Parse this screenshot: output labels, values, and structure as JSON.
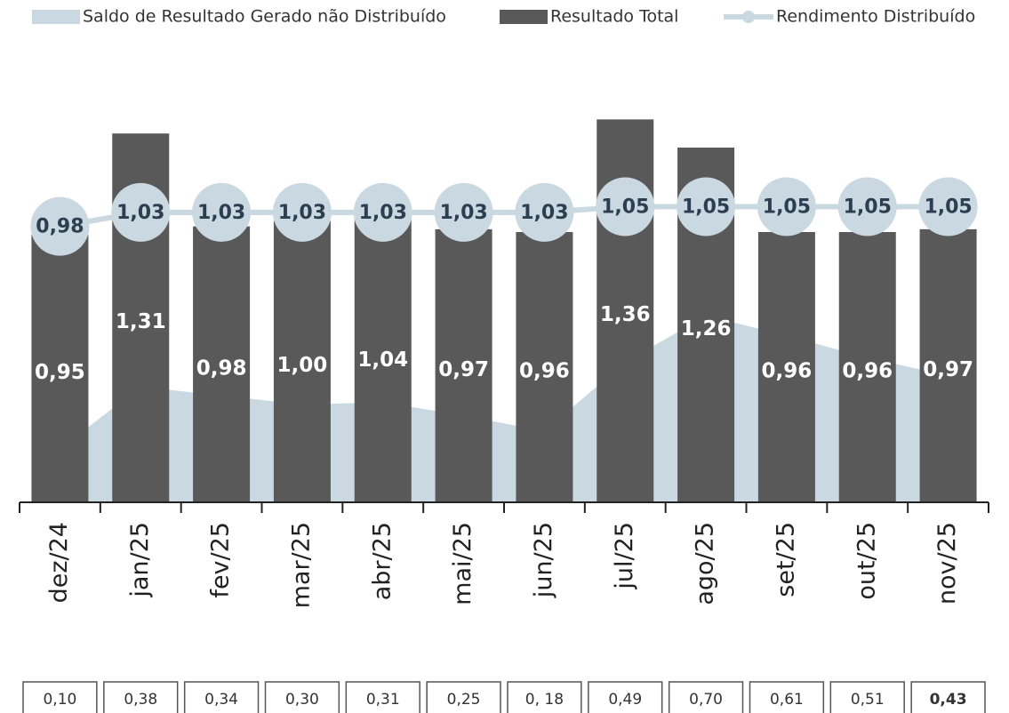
{
  "chart_data": {
    "type": "bar",
    "categories": [
      "dez/24",
      "jan/25",
      "fev/25",
      "mar/25",
      "abr/25",
      "mai/25",
      "jun/25",
      "jul/25",
      "ago/25",
      "set/25",
      "out/25",
      "nov/25"
    ],
    "ylim": [
      0,
      1.5
    ],
    "y2lim": [
      -0.14,
      1.76
    ],
    "series": [
      {
        "name": "Saldo de Resultado Gerado não Distribuído",
        "type": "area",
        "axis": "y2",
        "color": "#c9d8e1",
        "values": [
          0.1,
          0.38,
          0.34,
          0.3,
          0.31,
          0.25,
          0.18,
          0.49,
          0.7,
          0.61,
          0.51,
          0.43
        ],
        "value_labels": [
          "0,10",
          "0,38",
          "0,34",
          "0,30",
          "0,31",
          "0,25",
          "0, 18",
          "0,49",
          "0,70",
          "0,61",
          "0,51",
          "0,43"
        ]
      },
      {
        "name": "Resultado Total",
        "type": "bar",
        "color": "#595959",
        "values": [
          0.95,
          1.31,
          0.98,
          1.0,
          1.04,
          0.97,
          0.96,
          1.36,
          1.26,
          0.96,
          0.96,
          0.97
        ],
        "value_labels": [
          "0,95",
          "1,31",
          "0,98",
          "1,00",
          "1,04",
          "0,97",
          "0,96",
          "1,36",
          "1,26",
          "0,96",
          "0,96",
          "0,97"
        ]
      },
      {
        "name": "Rendimento Distribuído",
        "type": "line",
        "color": "#c9d8e1",
        "values": [
          0.98,
          1.03,
          1.03,
          1.03,
          1.03,
          1.03,
          1.03,
          1.05,
          1.05,
          1.05,
          1.05,
          1.05
        ],
        "value_labels": [
          "0,98",
          "1,03",
          "1,03",
          "1,03",
          "1,03",
          "1,03",
          "1,03",
          "1,05",
          "1,05",
          "1,05",
          "1,05",
          "1,05"
        ]
      }
    ]
  }
}
